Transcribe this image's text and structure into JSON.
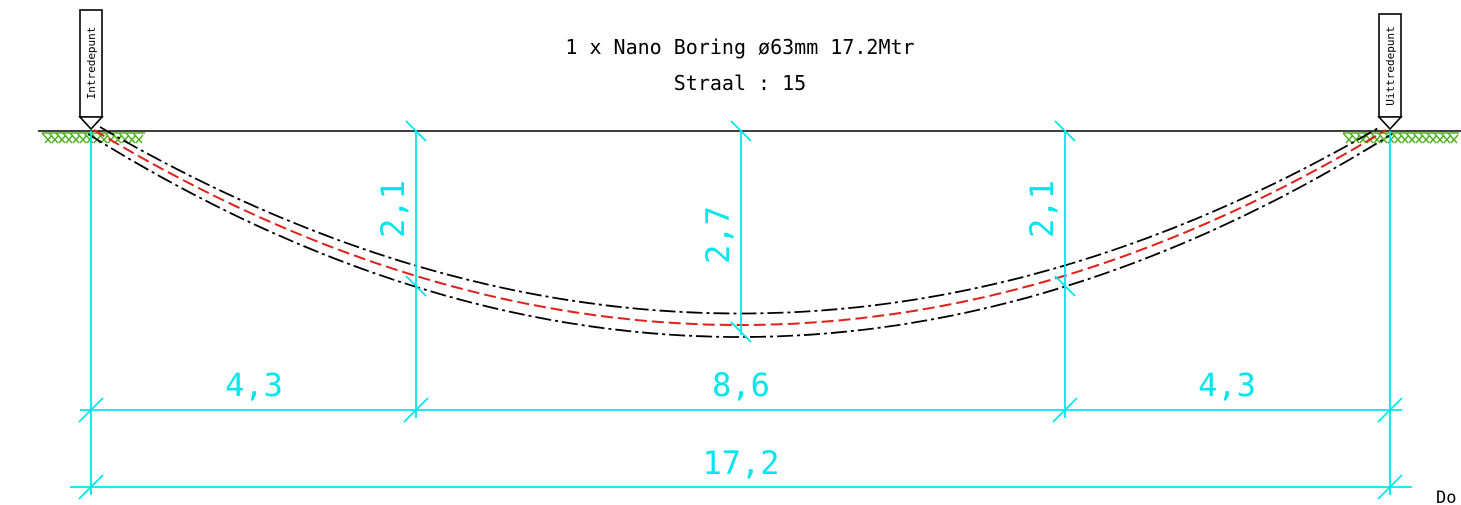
{
  "title": {
    "line1": "1 x Nano Boring ø63mm 17.2Mtr",
    "line2": "Straal : 15"
  },
  "markers": {
    "entry": "Intredepunt",
    "exit": "Uittredepunt"
  },
  "dimensions": {
    "depth_left": "2,1",
    "depth_center": "2,7",
    "depth_right": "2,1",
    "segment_left": "4,3",
    "segment_center": "8,6",
    "segment_right": "4,3",
    "total": "17,2"
  },
  "corner_text": "Do",
  "colors": {
    "dimension": "#00e5ee",
    "pipe_core": "#e0201b",
    "pipe_outline": "#000000",
    "ground_hatch": "#4caf1a",
    "ground_line": "#000000"
  }
}
